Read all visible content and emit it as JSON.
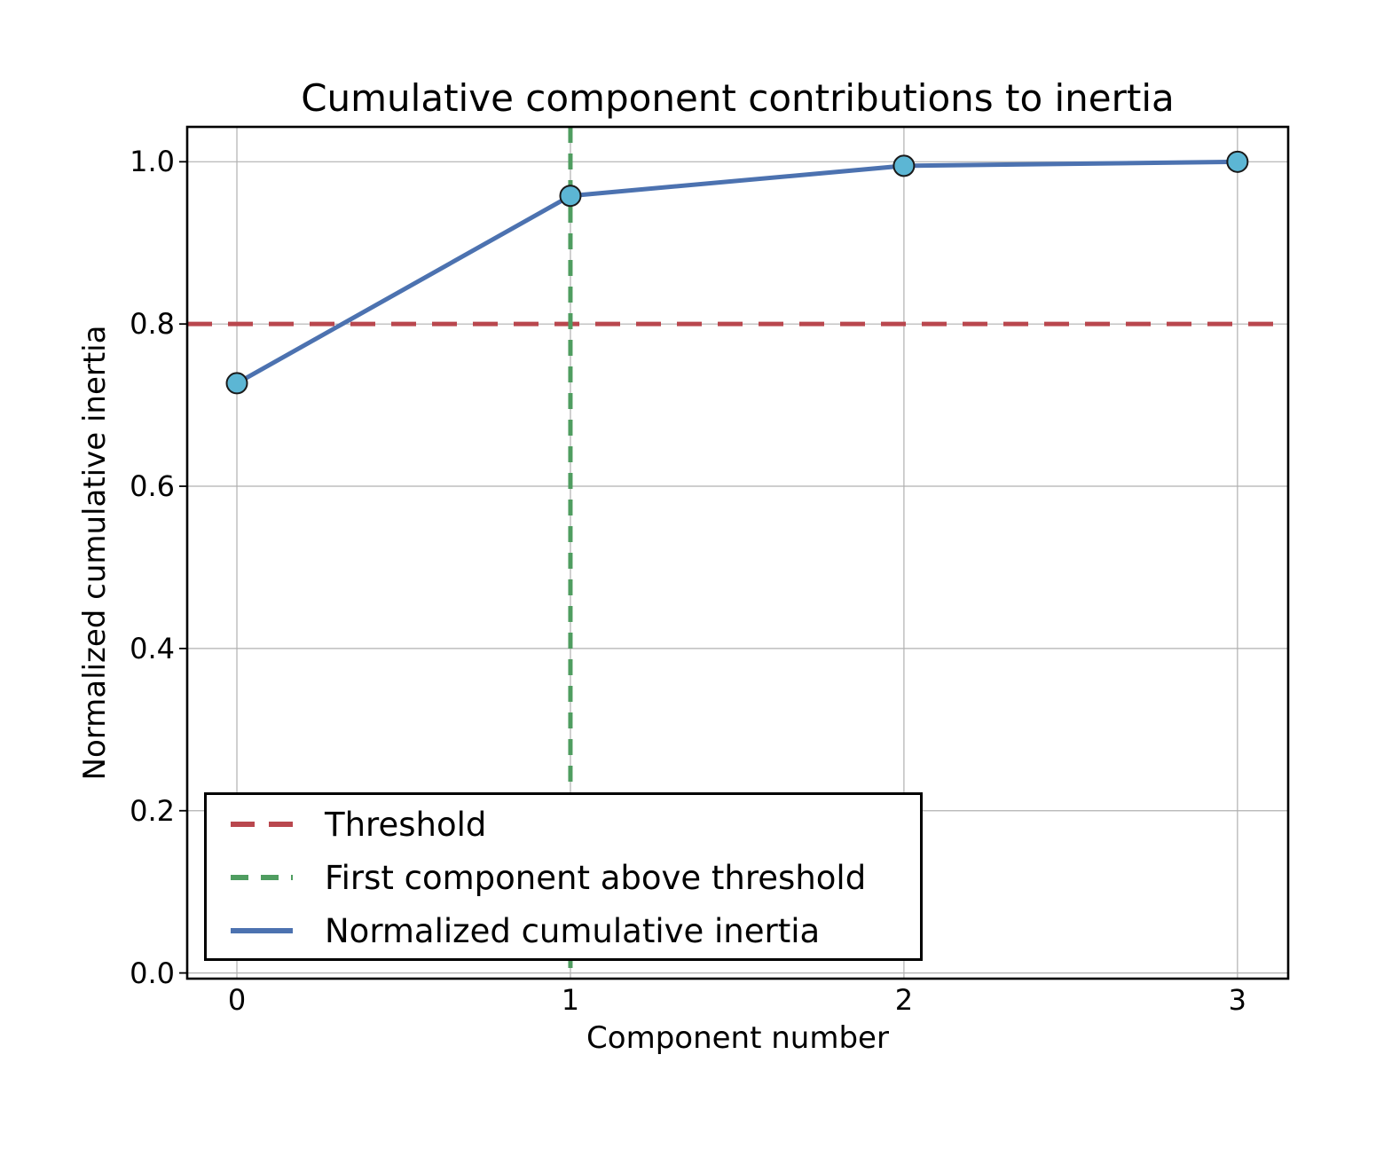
{
  "figure": {
    "background": "#ffffff"
  },
  "chart_data": {
    "type": "line",
    "title": "Cumulative component contributions to inertia",
    "xlabel": "Component number",
    "ylabel": "Normalized cumulative inertia",
    "x": [
      0,
      1,
      2,
      3
    ],
    "series": [
      {
        "name": "Normalized cumulative inertia",
        "values": [
          0.727,
          0.958,
          0.995,
          1.0
        ],
        "color": "#4C72B0",
        "style": "solid",
        "line_width": 5,
        "marker": "circle",
        "marker_face": "#5CB6D4",
        "marker_edge": "#1a1a1a",
        "marker_radius": 11.5
      }
    ],
    "reference_lines": [
      {
        "name": "Threshold",
        "orientation": "horizontal",
        "value": 0.8,
        "color": "#B9474E",
        "style": "dashed",
        "dash": "28 18",
        "line_width": 5
      },
      {
        "name": "First component above threshold",
        "orientation": "vertical",
        "value": 1,
        "color": "#4F9D60",
        "style": "dashed",
        "dash": "18 12",
        "line_width": 5
      }
    ],
    "legend": {
      "position": "lower left",
      "entries": [
        {
          "label": "Threshold",
          "color": "#B9474E",
          "dash": "27 16"
        },
        {
          "label": "First component above threshold",
          "color": "#4F9D60",
          "dash": "20 14"
        },
        {
          "label": "Normalized cumulative inertia",
          "color": "#4C72B0",
          "dash": ""
        }
      ]
    },
    "xticks": [
      0,
      1,
      2,
      3
    ],
    "xtick_labels": [
      "0",
      "1",
      "2",
      "3"
    ],
    "yticks": [
      0.0,
      0.2,
      0.4,
      0.6,
      0.8,
      1.0
    ],
    "ytick_labels": [
      "0.0",
      "0.2",
      "0.4",
      "0.6",
      "0.8",
      "1.0"
    ],
    "xlim": [
      -0.149,
      3.152
    ],
    "ylim": [
      -0.007,
      1.043
    ],
    "grid": true,
    "grid_color": "#B0B0B0",
    "spine_color": "#000000",
    "tick_color": "#000000"
  }
}
